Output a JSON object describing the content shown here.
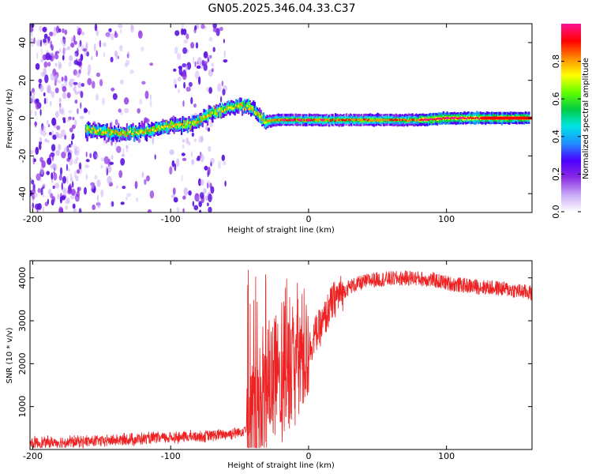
{
  "title": "GN05.2025.346.04.33.C37",
  "chart_data": [
    {
      "type": "heatmap",
      "name": "spectrogram",
      "xlabel": "Height of straight line (km)",
      "ylabel": "Frequency (Hz)",
      "xlim": [
        -202,
        162
      ],
      "ylim": [
        -50,
        50
      ],
      "xticks": [
        -200,
        -100,
        0,
        100
      ],
      "yticks": [
        -40,
        -20,
        0,
        20,
        40
      ],
      "ridge": [
        {
          "x": -162,
          "y": -6
        },
        {
          "x": -140,
          "y": -8
        },
        {
          "x": -120,
          "y": -7
        },
        {
          "x": -100,
          "y": -4
        },
        {
          "x": -85,
          "y": -3
        },
        {
          "x": -75,
          "y": 1
        },
        {
          "x": -65,
          "y": 4
        },
        {
          "x": -55,
          "y": 6
        },
        {
          "x": -45,
          "y": 7
        },
        {
          "x": -38,
          "y": 3
        },
        {
          "x": -32,
          "y": -2
        },
        {
          "x": -25,
          "y": -1
        },
        {
          "x": -10,
          "y": -1
        },
        {
          "x": 20,
          "y": -1
        },
        {
          "x": 60,
          "y": -1
        },
        {
          "x": 80,
          "y": -1
        },
        {
          "x": 100,
          "y": 0
        },
        {
          "x": 130,
          "y": 0
        },
        {
          "x": 160,
          "y": 0
        }
      ],
      "colorbar": {
        "label": "Normalized spectral amplitude",
        "ticks": [
          "0.0",
          "0.2",
          "0.4",
          "0.6",
          "0.8"
        ],
        "tick_values": [
          0.0,
          0.2,
          0.4,
          0.6,
          0.8
        ],
        "range": [
          0,
          1
        ],
        "colors": [
          "#ffffff",
          "#c9a9f7",
          "#8a2be2",
          "#4b00ff",
          "#1e90ff",
          "#00e5e5",
          "#00cc44",
          "#66ff00",
          "#ffff00",
          "#ff8800",
          "#ff0000",
          "#ff1493"
        ]
      }
    },
    {
      "type": "line",
      "name": "snr",
      "xlabel": "Height of straight line (km)",
      "ylabel": "SNR (10 * v/v)",
      "xlim": [
        -202,
        162
      ],
      "ylim": [
        0,
        4400
      ],
      "xticks": [
        -200,
        -100,
        0,
        100
      ],
      "yticks": [
        1000,
        2000,
        3000,
        4000
      ],
      "color": "#ee2222",
      "envelope": [
        {
          "x": -202,
          "y": 150
        },
        {
          "x": -150,
          "y": 200
        },
        {
          "x": -100,
          "y": 280
        },
        {
          "x": -70,
          "y": 320
        },
        {
          "x": -50,
          "y": 400
        },
        {
          "x": -40,
          "y": 650
        },
        {
          "x": -35,
          "y": 1000
        },
        {
          "x": -30,
          "y": 1500
        },
        {
          "x": -25,
          "y": 1700
        },
        {
          "x": -20,
          "y": 1600
        },
        {
          "x": -10,
          "y": 2200
        },
        {
          "x": 0,
          "y": 2300
        },
        {
          "x": 5,
          "y": 2700
        },
        {
          "x": 10,
          "y": 2900
        },
        {
          "x": 15,
          "y": 3300
        },
        {
          "x": 20,
          "y": 3550
        },
        {
          "x": 30,
          "y": 3800
        },
        {
          "x": 45,
          "y": 3950
        },
        {
          "x": 60,
          "y": 3980
        },
        {
          "x": 75,
          "y": 4000
        },
        {
          "x": 90,
          "y": 3950
        },
        {
          "x": 105,
          "y": 3850
        },
        {
          "x": 120,
          "y": 3800
        },
        {
          "x": 140,
          "y": 3750
        },
        {
          "x": 162,
          "y": 3650
        }
      ]
    }
  ]
}
